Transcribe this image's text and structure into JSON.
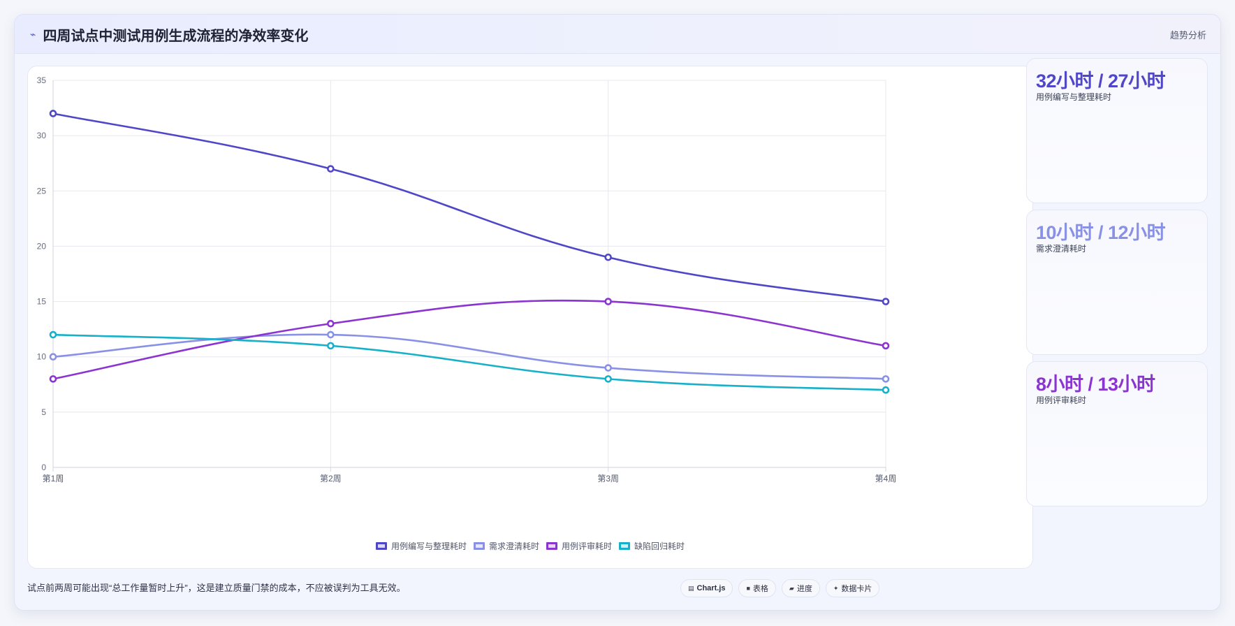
{
  "header": {
    "icon": "bolt-icon",
    "title": "四周试点中测试用例生成流程的净效率变化",
    "tag": "趋势分析"
  },
  "kpis": [
    {
      "value": "32小时 / 27小时",
      "label": "用例编写与整理耗时",
      "color": "#4f46c8"
    },
    {
      "value": "10小时 / 12小时",
      "label": "需求澄清耗时",
      "color": "#8891e6"
    },
    {
      "value": "8小时 / 13小时",
      "label": "用例评审耗时",
      "color": "#8b34d0"
    }
  ],
  "footer": {
    "note": "试点前两周可能出现“总工作量暂时上升”，这是建立质量门禁的成本，不应被误判为工具无效。",
    "pills": [
      {
        "icon": "chart-icon",
        "label": "Chart.js"
      },
      {
        "icon": "table-icon",
        "label": "表格"
      },
      {
        "icon": "progress-icon",
        "label": "进度"
      },
      {
        "icon": "sparkle-icon",
        "label": "数据卡片"
      }
    ]
  },
  "chart_data": {
    "type": "line",
    "categories": [
      "第1周",
      "第2周",
      "第3周",
      "第4周"
    ],
    "ylim": [
      0,
      35
    ],
    "yticks": [
      0,
      5,
      10,
      15,
      20,
      25,
      30,
      35
    ],
    "grid": true,
    "legend": "bottom",
    "series": [
      {
        "name": "用例编写与整理耗时",
        "values": [
          32,
          27,
          19,
          15
        ],
        "color": "#4f46c8"
      },
      {
        "name": "需求澄清耗时",
        "values": [
          10,
          12,
          9,
          8
        ],
        "color": "#8891e6"
      },
      {
        "name": "用例评审耗时",
        "values": [
          8,
          13,
          15,
          11
        ],
        "color": "#8b34d0"
      },
      {
        "name": "缺陷回归耗时",
        "values": [
          12,
          11,
          8,
          7
        ],
        "color": "#16b0c8"
      }
    ]
  }
}
